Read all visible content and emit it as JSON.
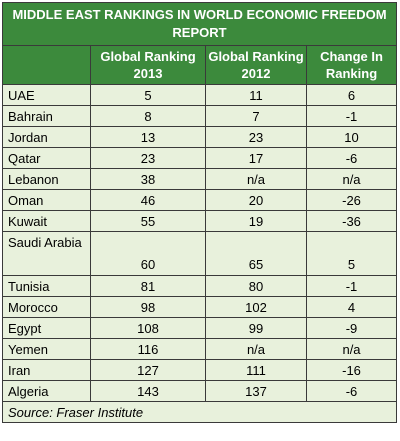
{
  "chart_data": {
    "type": "table",
    "title": "MIDDLE EAST RANKINGS IN WORLD ECONOMIC FREEDOM REPORT",
    "columns": [
      "",
      "Global Ranking 2013",
      "Global Ranking 2012",
      "Change In Ranking"
    ],
    "rows": [
      {
        "country": "UAE",
        "r2013": "5",
        "r2012": "11",
        "change": "6"
      },
      {
        "country": "Bahrain",
        "r2013": "8",
        "r2012": "7",
        "change": "-1"
      },
      {
        "country": "Jordan",
        "r2013": "13",
        "r2012": "23",
        "change": "10"
      },
      {
        "country": "Qatar",
        "r2013": "23",
        "r2012": "17",
        "change": "-6"
      },
      {
        "country": "Lebanon",
        "r2013": "38",
        "r2012": "n/a",
        "change": "n/a"
      },
      {
        "country": "Oman",
        "r2013": "46",
        "r2012": "20",
        "change": "-26"
      },
      {
        "country": "Kuwait",
        "r2013": "55",
        "r2012": "19",
        "change": "-36"
      },
      {
        "country": "Saudi Arabia",
        "r2013": "60",
        "r2012": "65",
        "change": "5"
      },
      {
        "country": "Tunisia",
        "r2013": "81",
        "r2012": "80",
        "change": "-1"
      },
      {
        "country": "Morocco",
        "r2013": "98",
        "r2012": "102",
        "change": "4"
      },
      {
        "country": "Egypt",
        "r2013": "108",
        "r2012": "99",
        "change": "-9"
      },
      {
        "country": "Yemen",
        "r2013": "116",
        "r2012": "n/a",
        "change": "n/a"
      },
      {
        "country": "Iran",
        "r2013": "127",
        "r2012": "111",
        "change": "-16"
      },
      {
        "country": "Algeria",
        "r2013": "143",
        "r2012": "137",
        "change": "-6"
      }
    ],
    "source": "Source: Fraser Institute"
  },
  "colors": {
    "header_bg": "#3c8a3c",
    "header_text": "#ffffff",
    "row_bg": "#e8f1dc",
    "border": "#3a3a3a"
  }
}
